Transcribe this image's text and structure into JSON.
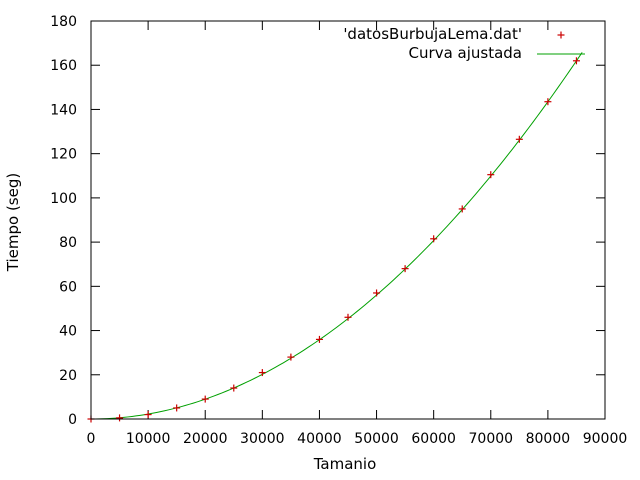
{
  "chart_data": {
    "type": "scatter",
    "title": "",
    "xlabel": "Tamanio",
    "ylabel": "Tiempo (seg)",
    "xlim": [
      0,
      90000
    ],
    "ylim": [
      0,
      180
    ],
    "xticks": [
      0,
      10000,
      20000,
      30000,
      40000,
      50000,
      60000,
      70000,
      80000,
      90000
    ],
    "yticks": [
      0,
      20,
      40,
      60,
      80,
      100,
      120,
      140,
      160,
      180
    ],
    "grid": false,
    "legend_position": "top-right",
    "series": [
      {
        "name": "'datosBurbujaLema.dat'",
        "kind": "points",
        "marker": "plus",
        "color": "#cc0000",
        "x": [
          0,
          5000,
          10000,
          15000,
          20000,
          25000,
          30000,
          35000,
          40000,
          45000,
          50000,
          55000,
          60000,
          65000,
          70000,
          75000,
          80000,
          85000
        ],
        "y": [
          0,
          0.5,
          2,
          5,
          9,
          14,
          21,
          28,
          36,
          46,
          57,
          68,
          81.5,
          95,
          110.5,
          126.5,
          143.5,
          162
        ]
      },
      {
        "name": "Curva ajustada",
        "kind": "line",
        "color": "#00a000",
        "model": "a*x^2",
        "coefficient": 2.242e-08,
        "x_range": [
          0,
          86000
        ]
      }
    ]
  }
}
